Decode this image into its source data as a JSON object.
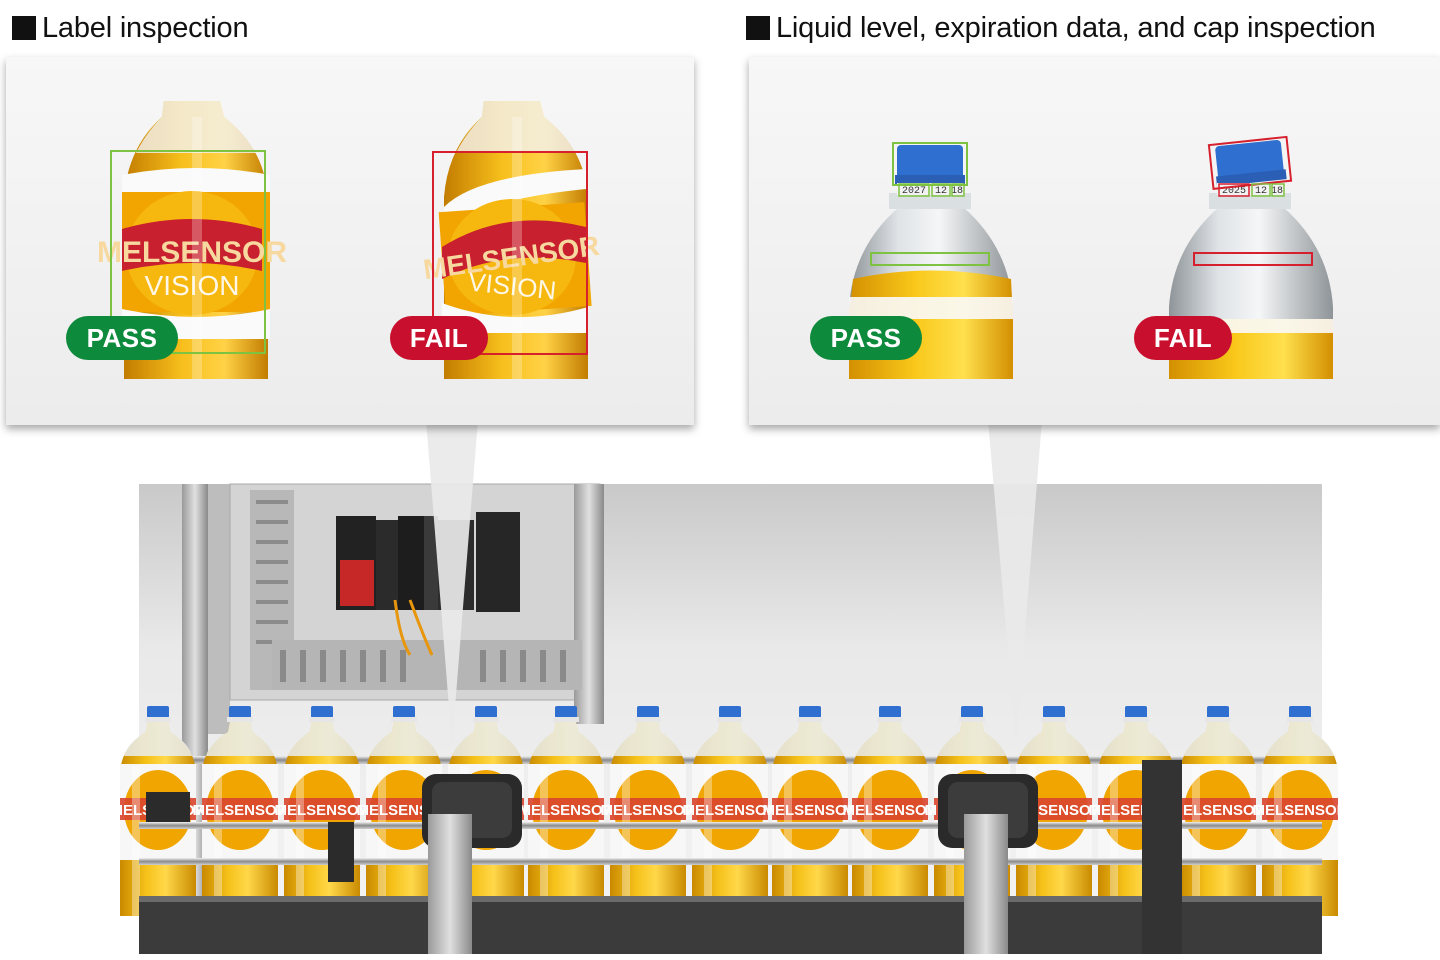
{
  "headings": {
    "left": "Label inspection",
    "right": "Liquid level, expiration data, and cap inspection"
  },
  "badges": {
    "pass": "PASS",
    "fail": "FAIL"
  },
  "label": {
    "brand": "MELSENSOR",
    "sub": "VISION"
  },
  "expiry": {
    "pass": [
      "2027",
      "12",
      "18"
    ],
    "fail": [
      "2025",
      "12",
      "18"
    ]
  },
  "colors": {
    "pass": "#0e8a3c",
    "fail": "#c8102e",
    "box_pass": "#7ec242",
    "box_fail": "#d6202e",
    "cap": "#2f6fd0",
    "juice": "#f4b400",
    "brand_red": "#c8202e"
  }
}
